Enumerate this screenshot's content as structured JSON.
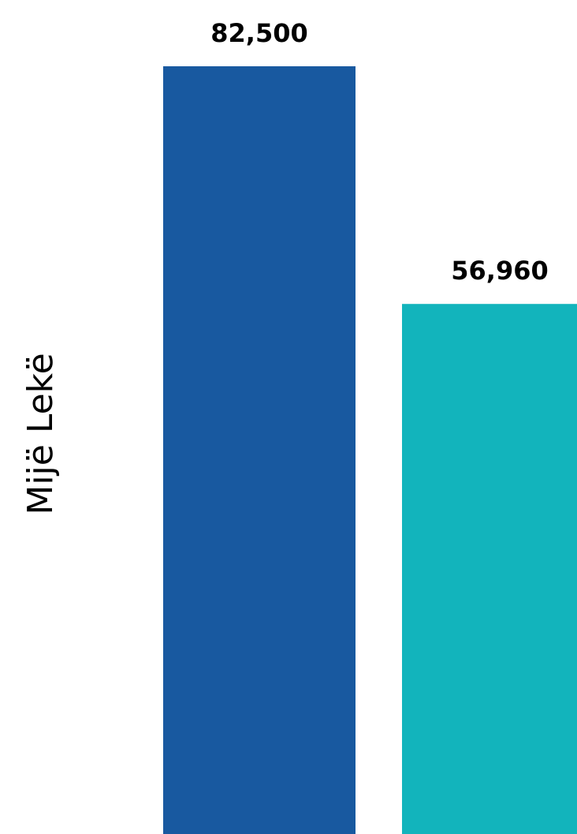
{
  "chart_data": {
    "type": "bar",
    "ylabel": "Mijë Lekë",
    "values": [
      82500,
      56960
    ],
    "value_labels": [
      "82,500",
      "56,960"
    ],
    "colors": [
      "#1859a0",
      "#12b4bc"
    ],
    "ylim": [
      0,
      90000
    ],
    "grid": false,
    "legend": "none"
  }
}
